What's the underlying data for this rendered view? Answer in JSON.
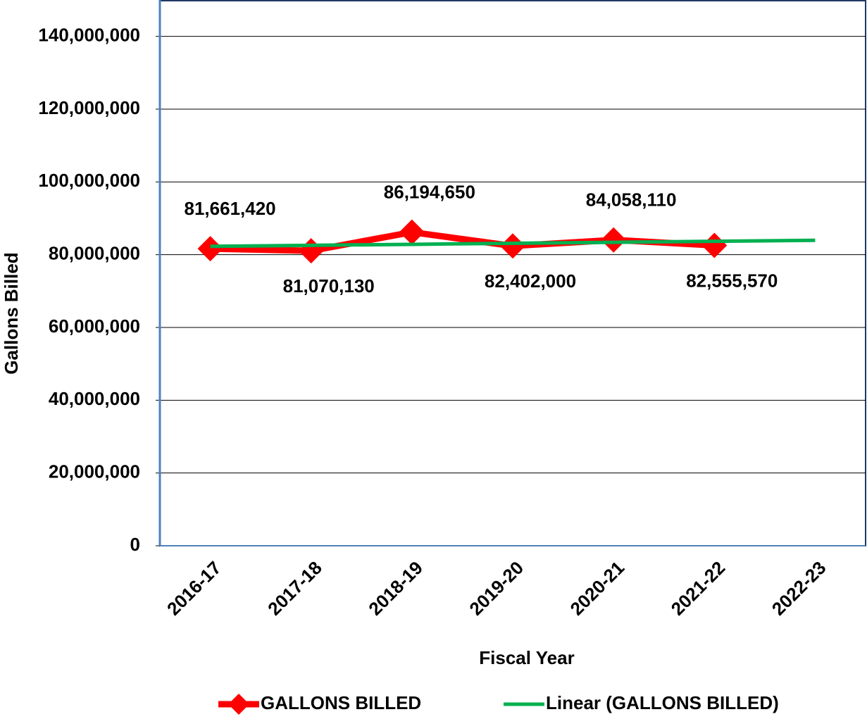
{
  "chart_data": {
    "type": "line",
    "x_label": "Fiscal Year",
    "y_label": "Gallons Billed",
    "categories": [
      "2016-17",
      "2017-18",
      "2018-19",
      "2019-20",
      "2020-21",
      "2021-22",
      "2022-23"
    ],
    "series": [
      {
        "name": "GALLONS BILLED",
        "color": "#ff0000",
        "values": [
          81661420,
          81070130,
          86194650,
          82402000,
          84058110,
          82555570,
          null
        ],
        "value_labels": [
          "81,661,420",
          "81,070,130",
          "86,194,650",
          "82,402,000",
          "84,058,110",
          "82,555,570",
          null
        ]
      },
      {
        "name": "Linear (GALLONS BILLED)",
        "color": "#00b050",
        "values": [
          82300000,
          82580000,
          82850000,
          83130000,
          83400000,
          83680000,
          83950000
        ]
      }
    ],
    "ylim": [
      0,
      150000000
    ],
    "yticks": [
      0,
      {
        "value": 20000000,
        "label": "20,000,000"
      },
      {
        "value": 40000000,
        "label": "40,000,000"
      },
      {
        "value": 60000000,
        "label": "60,000,000"
      },
      {
        "value": 80000000,
        "label": "80,000,000"
      },
      {
        "value": 100000000,
        "label": "100,000,000"
      },
      {
        "value": 120000000,
        "label": "120,000,000"
      },
      {
        "value": 140000000,
        "label": "140,000,000"
      }
    ],
    "grid": true,
    "legend": "bottom"
  }
}
